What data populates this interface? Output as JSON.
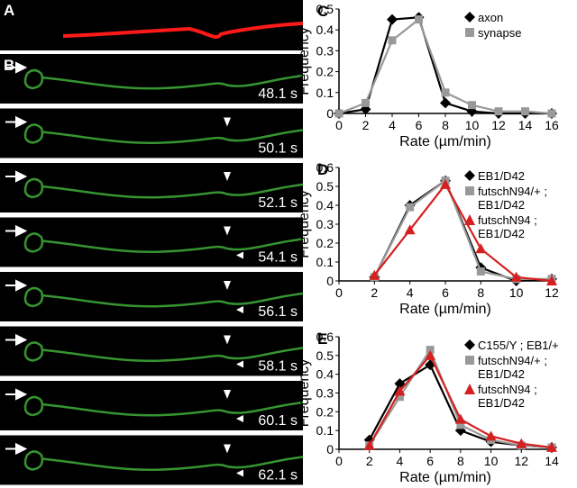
{
  "figure": {
    "panel_labels": [
      "A",
      "B"
    ],
    "timestamps": [
      "48.1 s",
      "50.1 s",
      "52.1 s",
      "54.1 s",
      "56.1 s",
      "58.1 s",
      "60.1 s",
      "62.1 s"
    ]
  },
  "chart_data": [
    {
      "type": "line",
      "panel_label": "C",
      "xlabel": "Rate (µm/min)",
      "ylabel": "Frequency",
      "x": [
        0,
        2,
        4,
        6,
        8,
        10,
        12,
        14,
        16
      ],
      "xlim": [
        0,
        16
      ],
      "xticks": [
        0,
        2,
        4,
        6,
        8,
        10,
        12,
        14,
        16
      ],
      "ylim": [
        0,
        0.5
      ],
      "yticks": [
        0,
        0.1,
        0.2,
        0.3,
        0.4,
        0.5
      ],
      "legend": "upper right",
      "series": [
        {
          "name": "axon",
          "color": "#000000",
          "marker": "diamond",
          "values": [
            0,
            0.02,
            0.45,
            0.46,
            0.05,
            0.01,
            0,
            0,
            0
          ]
        },
        {
          "name": "synapse",
          "color": "#999999",
          "marker": "square",
          "values": [
            0,
            0.05,
            0.35,
            0.45,
            0.1,
            0.04,
            0.01,
            0.01,
            0
          ]
        }
      ]
    },
    {
      "type": "line",
      "panel_label": "D",
      "xlabel": "Rate (µm/min)",
      "ylabel": "Frequency",
      "x": [
        2,
        4,
        6,
        8,
        10,
        12
      ],
      "xlim": [
        0,
        12
      ],
      "xticks": [
        0,
        2,
        4,
        6,
        8,
        10,
        12
      ],
      "ylim": [
        0,
        0.6
      ],
      "yticks": [
        0,
        0.1,
        0.2,
        0.3,
        0.4,
        0.5,
        0.6
      ],
      "legend": "upper right",
      "series": [
        {
          "name": "EB1/D42",
          "color": "#000000",
          "marker": "diamond",
          "values": [
            0.02,
            0.4,
            0.53,
            0.07,
            0,
            0.01
          ]
        },
        {
          "name": "futschN94/+ ; EB1/D42",
          "color": "#999999",
          "marker": "square",
          "values": [
            0.02,
            0.39,
            0.53,
            0.05,
            0.01,
            0.01
          ]
        },
        {
          "name": "futschN94 ; EB1/D42",
          "color": "#d42020",
          "marker": "triangle",
          "values": [
            0.03,
            0.27,
            0.51,
            0.17,
            0.02,
            0
          ]
        }
      ]
    },
    {
      "type": "line",
      "panel_label": "E",
      "xlabel": "Rate (µm/min)",
      "ylabel": "Frequency",
      "x": [
        2,
        4,
        6,
        8,
        10,
        12,
        14
      ],
      "xlim": [
        0,
        14
      ],
      "xticks": [
        0,
        2,
        4,
        6,
        8,
        10,
        12,
        14
      ],
      "ylim": [
        0,
        0.6
      ],
      "yticks": [
        0,
        0.1,
        0.2,
        0.3,
        0.4,
        0.5,
        0.6
      ],
      "legend": "upper right",
      "series": [
        {
          "name": "C155/Y ; EB1/+",
          "color": "#000000",
          "marker": "diamond",
          "values": [
            0.05,
            0.35,
            0.45,
            0.1,
            0.04,
            0.02,
            0.01
          ]
        },
        {
          "name": "futschN94/+ ; EB1/D42",
          "color": "#999999",
          "marker": "square",
          "values": [
            0.02,
            0.28,
            0.53,
            0.13,
            0.05,
            0.02,
            0.01
          ]
        },
        {
          "name": "futschN94 ; EB1/D42",
          "color": "#d42020",
          "marker": "triangle",
          "values": [
            0.02,
            0.31,
            0.5,
            0.16,
            0.07,
            0.03,
            0.01
          ]
        }
      ]
    }
  ]
}
